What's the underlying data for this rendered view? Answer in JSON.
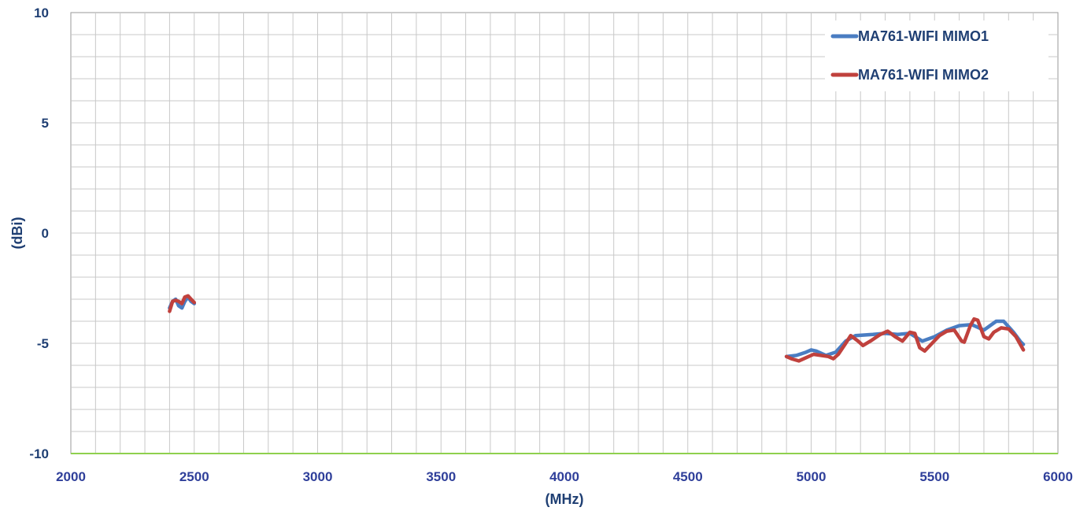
{
  "chart_data": {
    "type": "line",
    "title": "",
    "xlabel": "(MHz)",
    "ylabel": "(dBi)",
    "xlim": [
      2000,
      6000
    ],
    "ylim": [
      -10,
      10
    ],
    "x_ticks": [
      2000,
      2500,
      3000,
      3500,
      4000,
      4500,
      5000,
      5500,
      6000
    ],
    "y_ticks": [
      10,
      5,
      0,
      -5,
      -10
    ],
    "x_minor_step": 100,
    "y_minor_step": 1,
    "grid": true,
    "legend_position": "top-right",
    "series": [
      {
        "name": "MA761-WIFI MIMO1",
        "color": "#4a7dc2",
        "segments": [
          [
            [
              2400,
              -3.4
            ],
            [
              2412,
              -3.1
            ],
            [
              2425,
              -3.0
            ],
            [
              2437,
              -3.3
            ],
            [
              2450,
              -3.4
            ],
            [
              2462,
              -3.1
            ],
            [
              2475,
              -2.9
            ],
            [
              2487,
              -3.1
            ],
            [
              2500,
              -3.2
            ]
          ],
          [
            [
              4900,
              -5.6
            ],
            [
              4940,
              -5.55
            ],
            [
              4980,
              -5.4
            ],
            [
              5000,
              -5.3
            ],
            [
              5020,
              -5.35
            ],
            [
              5060,
              -5.55
            ],
            [
              5100,
              -5.4
            ],
            [
              5140,
              -4.9
            ],
            [
              5180,
              -4.65
            ],
            [
              5250,
              -4.6
            ],
            [
              5300,
              -4.55
            ],
            [
              5350,
              -4.6
            ],
            [
              5400,
              -4.55
            ],
            [
              5450,
              -4.9
            ],
            [
              5500,
              -4.7
            ],
            [
              5550,
              -4.4
            ],
            [
              5600,
              -4.2
            ],
            [
              5650,
              -4.15
            ],
            [
              5700,
              -4.4
            ],
            [
              5750,
              -4.0
            ],
            [
              5780,
              -4.0
            ],
            [
              5820,
              -4.5
            ],
            [
              5850,
              -4.95
            ],
            [
              5860,
              -5.05
            ]
          ]
        ]
      },
      {
        "name": "MA761-WIFI MIMO2",
        "color": "#c0413d",
        "segments": [
          [
            [
              2400,
              -3.55
            ],
            [
              2412,
              -3.1
            ],
            [
              2425,
              -3.05
            ],
            [
              2437,
              -3.1
            ],
            [
              2450,
              -3.2
            ],
            [
              2462,
              -2.9
            ],
            [
              2475,
              -2.85
            ],
            [
              2487,
              -3.0
            ],
            [
              2500,
              -3.15
            ]
          ],
          [
            [
              4900,
              -5.6
            ],
            [
              4920,
              -5.7
            ],
            [
              4950,
              -5.8
            ],
            [
              4980,
              -5.65
            ],
            [
              5010,
              -5.5
            ],
            [
              5040,
              -5.55
            ],
            [
              5070,
              -5.6
            ],
            [
              5090,
              -5.7
            ],
            [
              5110,
              -5.5
            ],
            [
              5140,
              -5.0
            ],
            [
              5160,
              -4.65
            ],
            [
              5190,
              -4.9
            ],
            [
              5210,
              -5.1
            ],
            [
              5240,
              -4.9
            ],
            [
              5280,
              -4.6
            ],
            [
              5310,
              -4.45
            ],
            [
              5340,
              -4.7
            ],
            [
              5370,
              -4.9
            ],
            [
              5400,
              -4.5
            ],
            [
              5420,
              -4.55
            ],
            [
              5440,
              -5.2
            ],
            [
              5460,
              -5.35
            ],
            [
              5490,
              -5.0
            ],
            [
              5520,
              -4.65
            ],
            [
              5550,
              -4.45
            ],
            [
              5580,
              -4.4
            ],
            [
              5610,
              -4.9
            ],
            [
              5620,
              -4.95
            ],
            [
              5645,
              -4.2
            ],
            [
              5660,
              -3.9
            ],
            [
              5675,
              -3.95
            ],
            [
              5700,
              -4.7
            ],
            [
              5720,
              -4.8
            ],
            [
              5740,
              -4.5
            ],
            [
              5770,
              -4.3
            ],
            [
              5800,
              -4.35
            ],
            [
              5830,
              -4.7
            ],
            [
              5860,
              -5.3
            ]
          ]
        ]
      }
    ]
  }
}
